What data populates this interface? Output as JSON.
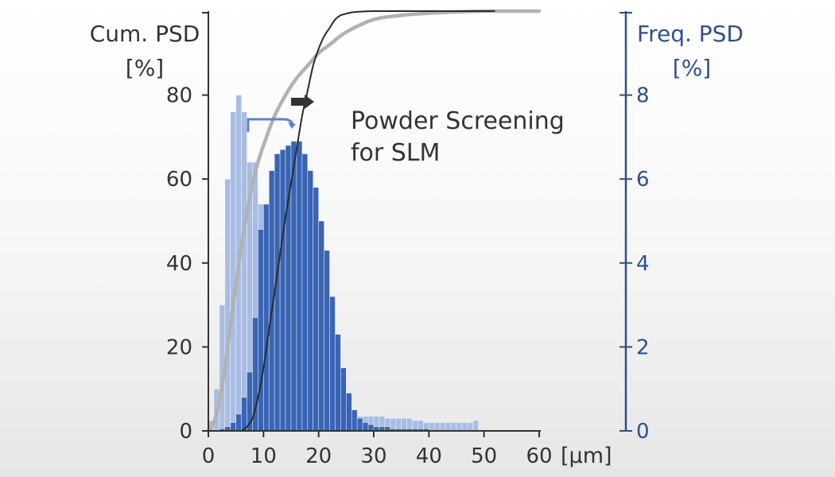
{
  "chart_data": {
    "type": "bar",
    "annotation": [
      "Powder Screening",
      "for SLM"
    ],
    "x_axis": {
      "label": "[μm]",
      "ticks": [
        0,
        10,
        20,
        30,
        40,
        50,
        60
      ],
      "range": [
        0,
        60
      ]
    },
    "y_left": {
      "label": [
        "Cum. PSD",
        "[%]"
      ],
      "ticks": [
        0,
        20,
        40,
        60,
        80
      ],
      "range": [
        0,
        100
      ]
    },
    "y_right": {
      "label": [
        "Freq. PSD",
        "[%]"
      ],
      "ticks": [
        0,
        2,
        4,
        6,
        8
      ],
      "range": [
        0,
        10
      ]
    },
    "bin_width": 1,
    "series": [
      {
        "kind": "histogram",
        "color": "#a9bde3",
        "x": [
          0,
          1,
          2,
          3,
          4,
          5,
          6,
          7,
          8,
          9,
          10,
          11,
          12,
          13,
          14,
          15,
          16,
          17,
          18,
          19,
          20,
          21,
          22,
          23,
          24,
          25,
          26,
          27,
          28,
          29,
          30,
          31,
          32,
          33,
          34,
          35,
          36,
          37,
          38,
          39,
          40,
          41,
          42,
          43,
          44,
          45,
          46,
          47,
          48
        ],
        "values": [
          0.25,
          1.0,
          3.0,
          6.0,
          7.6,
          8.0,
          7.6,
          6.4,
          6.4,
          5.4,
          4.5,
          3.6,
          2.8,
          2.1,
          1.6,
          1.2,
          0.9,
          0.7,
          0.55,
          0.45,
          0.35,
          0.3,
          0.25,
          0.25,
          0.25,
          0.3,
          0.35,
          0.35,
          0.35,
          0.35,
          0.35,
          0.35,
          0.3,
          0.3,
          0.3,
          0.3,
          0.3,
          0.25,
          0.25,
          0.2,
          0.2,
          0.2,
          0.2,
          0.2,
          0.2,
          0.2,
          0.2,
          0.2,
          0.25
        ]
      },
      {
        "kind": "histogram",
        "color": "#3a64b4",
        "x": [
          2,
          3,
          4,
          5,
          6,
          7,
          8,
          9,
          10,
          11,
          12,
          13,
          14,
          15,
          16,
          17,
          18,
          19,
          20,
          21,
          22,
          23,
          24,
          25,
          26,
          27,
          28,
          29,
          30,
          31,
          32,
          33,
          34,
          35,
          36,
          37,
          38,
          39
        ],
        "values": [
          0.05,
          0.1,
          0.2,
          0.4,
          0.8,
          1.4,
          2.7,
          4.8,
          5.4,
          6.2,
          6.6,
          6.7,
          6.8,
          6.9,
          6.9,
          6.6,
          6.2,
          5.8,
          5.0,
          4.3,
          3.2,
          2.3,
          1.5,
          0.9,
          0.5,
          0.3,
          0.2,
          0.15,
          0.1,
          0.1,
          0.1,
          0.05,
          0.05,
          0.05,
          0.05,
          0.05,
          0.05,
          0.05
        ]
      },
      {
        "kind": "line",
        "color": "#b2b2b2",
        "x": [
          0,
          1,
          2,
          3,
          4,
          5,
          6,
          7,
          8,
          9,
          10,
          12,
          14,
          16,
          18,
          20,
          22,
          25,
          30,
          35,
          40,
          45,
          50,
          55,
          60
        ],
        "values": [
          0,
          2,
          7,
          15,
          25,
          35,
          44,
          52,
          59,
          64,
          68,
          75,
          80,
          84,
          87,
          90,
          92,
          95,
          98,
          99,
          99.5,
          99.8,
          100,
          100,
          100
        ]
      },
      {
        "kind": "line",
        "color": "#2a2a2a",
        "x": [
          6,
          7,
          8,
          9,
          10,
          11,
          12,
          13,
          14,
          15,
          16,
          17,
          18,
          19,
          20,
          21,
          22,
          23,
          24,
          25,
          26,
          28,
          30,
          35,
          40,
          45,
          52
        ],
        "values": [
          0,
          1,
          3,
          8,
          15,
          24,
          33,
          42,
          51,
          59,
          67,
          75,
          81,
          87,
          91,
          94,
          96,
          98,
          99,
          99.4,
          99.7,
          99.9,
          100,
          100,
          100,
          100,
          100
        ]
      }
    ]
  },
  "palette": {
    "axis": "#333333",
    "right_axis": "#2f4f8a",
    "shift_arrow": "#5a86c8",
    "cum_arrow": "#333333"
  }
}
